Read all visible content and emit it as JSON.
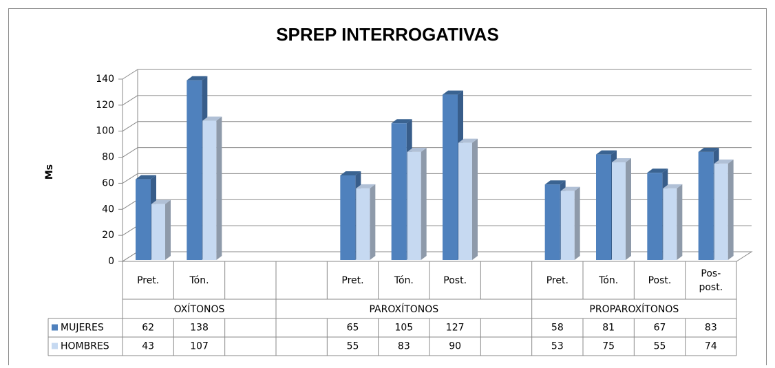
{
  "chart_data": {
    "type": "bar",
    "title": "SPREP INTERROGATIVAS",
    "ylabel": "Ms",
    "categories": [
      "Pret.",
      "Tón.",
      null,
      null,
      "Pret.",
      "Tón.",
      "Post.",
      null,
      "Pret.",
      "Tón.",
      "Post.",
      "Pos- post."
    ],
    "groups": [
      "OXÍTONOS",
      "PAROXÍTONOS",
      "PROPAROXÍTONOS"
    ],
    "series": [
      {
        "name": "MUJERES",
        "color": "#4f81bd",
        "values": [
          62,
          138,
          null,
          null,
          65,
          105,
          127,
          null,
          58,
          81,
          67,
          83
        ]
      },
      {
        "name": "HOMBRES",
        "color": "#c6d9f1",
        "values": [
          43,
          107,
          null,
          null,
          55,
          83,
          90,
          null,
          53,
          75,
          55,
          74
        ]
      }
    ],
    "ylim": [
      0,
      140
    ],
    "yticks": [
      0,
      20,
      40,
      60,
      80,
      100,
      120,
      140
    ],
    "grid": true
  }
}
